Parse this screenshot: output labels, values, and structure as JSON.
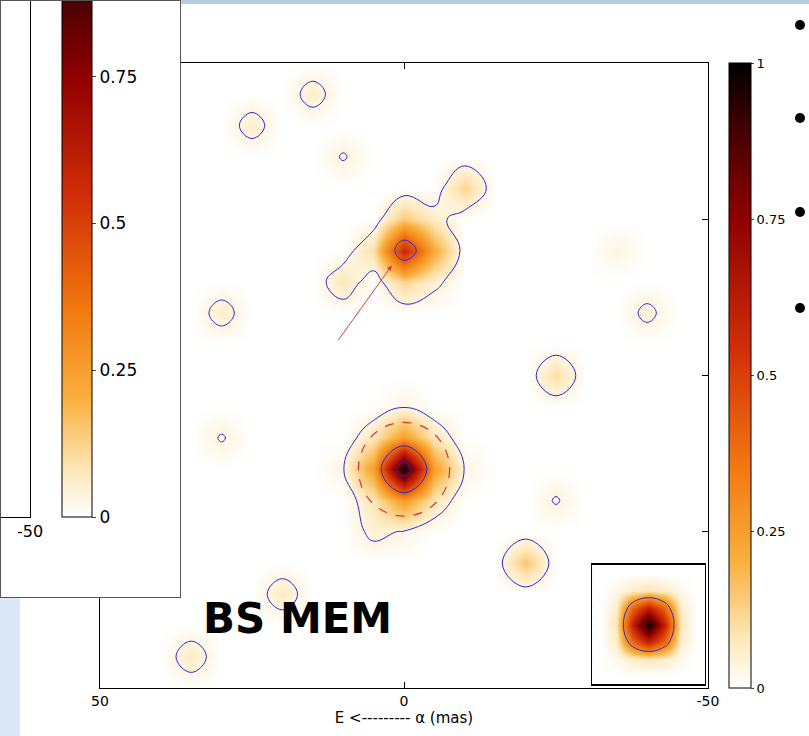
{
  "chart_data": [
    {
      "type": "heatmap",
      "xlabel": "E <--------- α (mas)",
      "annotation": "BS MEM",
      "x": [
        50,
        45,
        40,
        35,
        30,
        25,
        20,
        15,
        10,
        5,
        0,
        -5,
        -10,
        -15,
        -20,
        -25,
        -30,
        -35,
        -40,
        -45,
        -50
      ],
      "y": [
        -50,
        -45,
        -40,
        -35,
        -30,
        -25,
        -20,
        -15,
        -10,
        -5,
        0,
        5,
        10,
        15,
        20,
        25,
        30,
        35,
        40,
        45,
        50
      ],
      "z": [
        [
          0,
          0,
          0,
          0,
          0,
          0,
          0,
          0,
          0,
          0,
          0,
          0,
          0,
          0,
          0,
          0,
          0,
          0,
          0,
          0,
          0
        ],
        [
          0,
          0,
          0,
          0.07,
          0,
          0,
          0,
          0,
          0,
          0,
          0,
          0,
          0,
          0,
          0,
          0,
          0,
          0,
          0,
          0,
          0
        ],
        [
          0,
          0,
          0,
          0,
          0,
          0,
          0,
          0,
          0,
          0,
          0,
          0,
          0,
          0,
          0,
          0,
          0,
          0,
          0,
          0,
          0
        ],
        [
          0,
          0,
          0,
          0,
          0,
          0,
          0.07,
          0,
          0,
          0,
          0,
          0,
          0,
          0,
          0,
          0,
          0,
          0,
          0,
          0,
          0
        ],
        [
          0,
          0,
          0,
          0,
          0,
          0,
          0,
          0,
          0,
          0,
          0,
          0,
          0,
          0,
          0.15,
          0,
          0,
          0,
          0,
          0,
          0
        ],
        [
          0,
          0,
          0,
          0,
          0,
          0,
          0,
          0,
          0,
          0.05,
          0.03,
          0,
          0,
          0,
          0,
          0,
          0,
          0,
          0,
          0,
          0
        ],
        [
          0,
          0,
          0,
          0,
          0,
          0,
          0,
          0,
          0,
          0.08,
          0.25,
          0.08,
          0,
          0,
          0,
          0.04,
          0,
          0,
          0,
          0,
          0
        ],
        [
          0,
          0,
          0,
          0,
          0,
          0,
          0,
          0,
          0.03,
          0.25,
          1,
          0.25,
          0.03,
          0,
          0,
          0,
          0,
          0,
          0,
          0,
          0
        ],
        [
          0,
          0,
          0,
          0,
          0.04,
          0,
          0,
          0,
          0,
          0.08,
          0.25,
          0.08,
          0,
          0,
          0,
          0,
          0,
          0,
          0,
          0,
          0
        ],
        [
          0,
          0,
          0,
          0,
          0,
          0,
          0,
          0,
          0,
          0,
          0.03,
          0,
          0,
          0,
          0,
          0,
          0,
          0,
          0,
          0,
          0
        ],
        [
          0,
          0,
          0,
          0,
          0,
          0,
          0,
          0,
          0,
          0,
          0,
          0,
          0,
          0,
          0,
          0.1,
          0,
          0,
          0,
          0,
          0
        ],
        [
          0,
          0,
          0,
          0,
          0,
          0,
          0,
          0,
          0,
          0,
          0,
          0,
          0,
          0,
          0,
          0,
          0,
          0,
          0,
          0,
          0
        ],
        [
          0,
          0,
          0,
          0,
          0.06,
          0,
          0,
          0,
          0,
          0,
          0,
          0,
          0,
          0,
          0,
          0,
          0,
          0,
          0.05,
          0,
          0
        ],
        [
          0,
          0,
          0,
          0,
          0,
          0,
          0,
          0,
          0.08,
          0,
          0.12,
          0.05,
          0,
          0,
          0,
          0,
          0,
          0,
          0,
          0,
          0
        ],
        [
          0,
          0,
          0,
          0,
          0,
          0,
          0,
          0,
          0,
          0.1,
          0.58,
          0.22,
          0,
          0,
          0,
          0,
          0,
          0.03,
          0,
          0,
          0
        ],
        [
          0,
          0,
          0,
          0,
          0,
          0,
          0,
          0,
          0,
          0,
          0.14,
          0.06,
          0,
          0,
          0,
          0,
          0,
          0,
          0,
          0,
          0
        ],
        [
          0,
          0,
          0,
          0,
          0,
          0,
          0,
          0,
          0,
          0,
          0,
          0,
          0.12,
          0,
          0,
          0,
          0,
          0,
          0,
          0,
          0
        ],
        [
          0,
          0,
          0,
          0,
          0,
          0,
          0,
          0,
          0.04,
          0,
          0,
          0,
          0,
          0,
          0,
          0,
          0,
          0,
          0,
          0,
          0
        ],
        [
          0,
          0,
          0,
          0,
          0,
          0.06,
          0,
          0,
          0,
          0,
          0,
          0,
          0,
          0,
          0,
          0,
          0,
          0,
          0,
          0,
          0
        ],
        [
          0,
          0,
          0,
          0,
          0,
          0,
          0,
          0.06,
          0,
          0,
          0,
          0,
          0,
          0,
          0,
          0,
          0,
          0,
          0,
          0,
          0
        ],
        [
          0,
          0,
          0,
          0,
          0,
          0,
          0,
          0,
          0,
          0,
          0,
          0,
          0,
          0,
          0,
          0,
          0,
          0,
          0,
          0,
          0
        ]
      ],
      "xlim": [
        50,
        -50
      ],
      "xticks": [
        50,
        0,
        -50
      ],
      "ylim": [
        -50,
        50
      ],
      "yticks": [
        -50,
        -25,
        0,
        25,
        50
      ],
      "zlim": [
        0,
        1
      ],
      "zticks": [
        0,
        0.25,
        0.5,
        0.75,
        1
      ],
      "beam_z": [
        [
          0,
          0,
          0,
          0,
          0,
          0,
          0
        ],
        [
          0,
          0.02,
          0.06,
          0.08,
          0.06,
          0.02,
          0
        ],
        [
          0,
          0.06,
          0.4,
          0.6,
          0.4,
          0.06,
          0
        ],
        [
          0,
          0.08,
          0.6,
          1,
          0.6,
          0.08,
          0
        ],
        [
          0,
          0.06,
          0.4,
          0.6,
          0.4,
          0.06,
          0
        ],
        [
          0,
          0.02,
          0.06,
          0.08,
          0.06,
          0.02,
          0
        ],
        [
          0,
          0,
          0,
          0,
          0,
          0,
          0
        ]
      ],
      "grid": false,
      "tick_labels": "x"
    },
    {
      "type": "heatmap",
      "x": [
        50,
        -50
      ],
      "y": [
        -50,
        50
      ],
      "z": [
        [
          0,
          0
        ],
        [
          0,
          0
        ]
      ],
      "xlim": [
        50,
        -50
      ],
      "xticks": [
        -50
      ],
      "ylim": [
        -50,
        50
      ],
      "zlim": [
        0,
        1
      ],
      "zticks": [
        0,
        0.25,
        0.5,
        0.75
      ],
      "grid": false,
      "tick_labels": "x"
    }
  ]
}
